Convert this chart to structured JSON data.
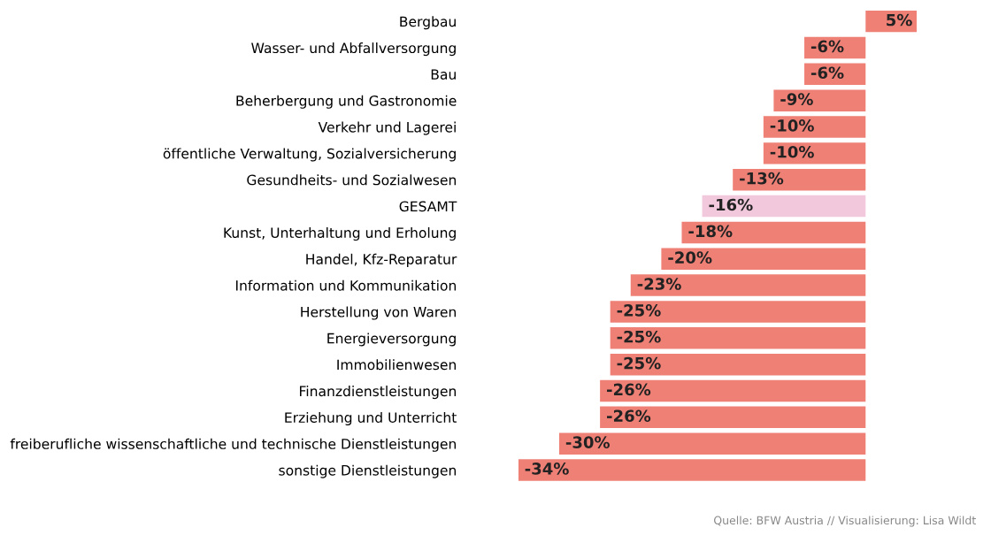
{
  "chart_data": {
    "type": "bar",
    "orientation": "horizontal",
    "categories": [
      "Bergbau",
      "Wasser- und Abfallversorgung",
      "Bau",
      "Beherbergung und Gastronomie",
      "Verkehr und Lagerei",
      "öffentliche Verwaltung, Sozialversicherung",
      "Gesundheits- und Sozialwesen",
      "GESAMT",
      "Kunst, Unterhaltung und Erholung",
      "Handel, Kfz-Reparatur",
      "Information und Kommunikation",
      "Herstellung von Waren",
      "Energieversorgung",
      "Immobilienwesen",
      "Finanzdienstleistungen",
      "Erziehung und Unterricht",
      "freiberufliche wissenschaftliche und technische Dienstleistungen",
      "sonstige Dienstleistungen"
    ],
    "values": [
      5,
      -6,
      -6,
      -9,
      -10,
      -10,
      -13,
      -16,
      -18,
      -20,
      -23,
      -25,
      -25,
      -25,
      -26,
      -26,
      -30,
      -34
    ],
    "value_labels": [
      "5%",
      "-6%",
      "-6%",
      "-9%",
      "-10%",
      "-10%",
      "-13%",
      "-16%",
      "-18%",
      "-20%",
      "-23%",
      "-25%",
      "-25%",
      "-25%",
      "-26%",
      "-26%",
      "-30%",
      "-34%"
    ],
    "colors": [
      "#ef8076",
      "#ef8076",
      "#ef8076",
      "#ef8076",
      "#ef8076",
      "#ef8076",
      "#ef8076",
      "#f2c8dc",
      "#ef8076",
      "#ef8076",
      "#ef8076",
      "#ef8076",
      "#ef8076",
      "#ef8076",
      "#ef8076",
      "#ef8076",
      "#ef8076",
      "#ef8076"
    ],
    "xlim": [
      -34,
      5
    ],
    "tick_labels": "y",
    "grid": false,
    "legend": false,
    "annotations": [
      "Quelle: BFW Austria // Visualisierung: Lisa Wildt"
    ]
  }
}
